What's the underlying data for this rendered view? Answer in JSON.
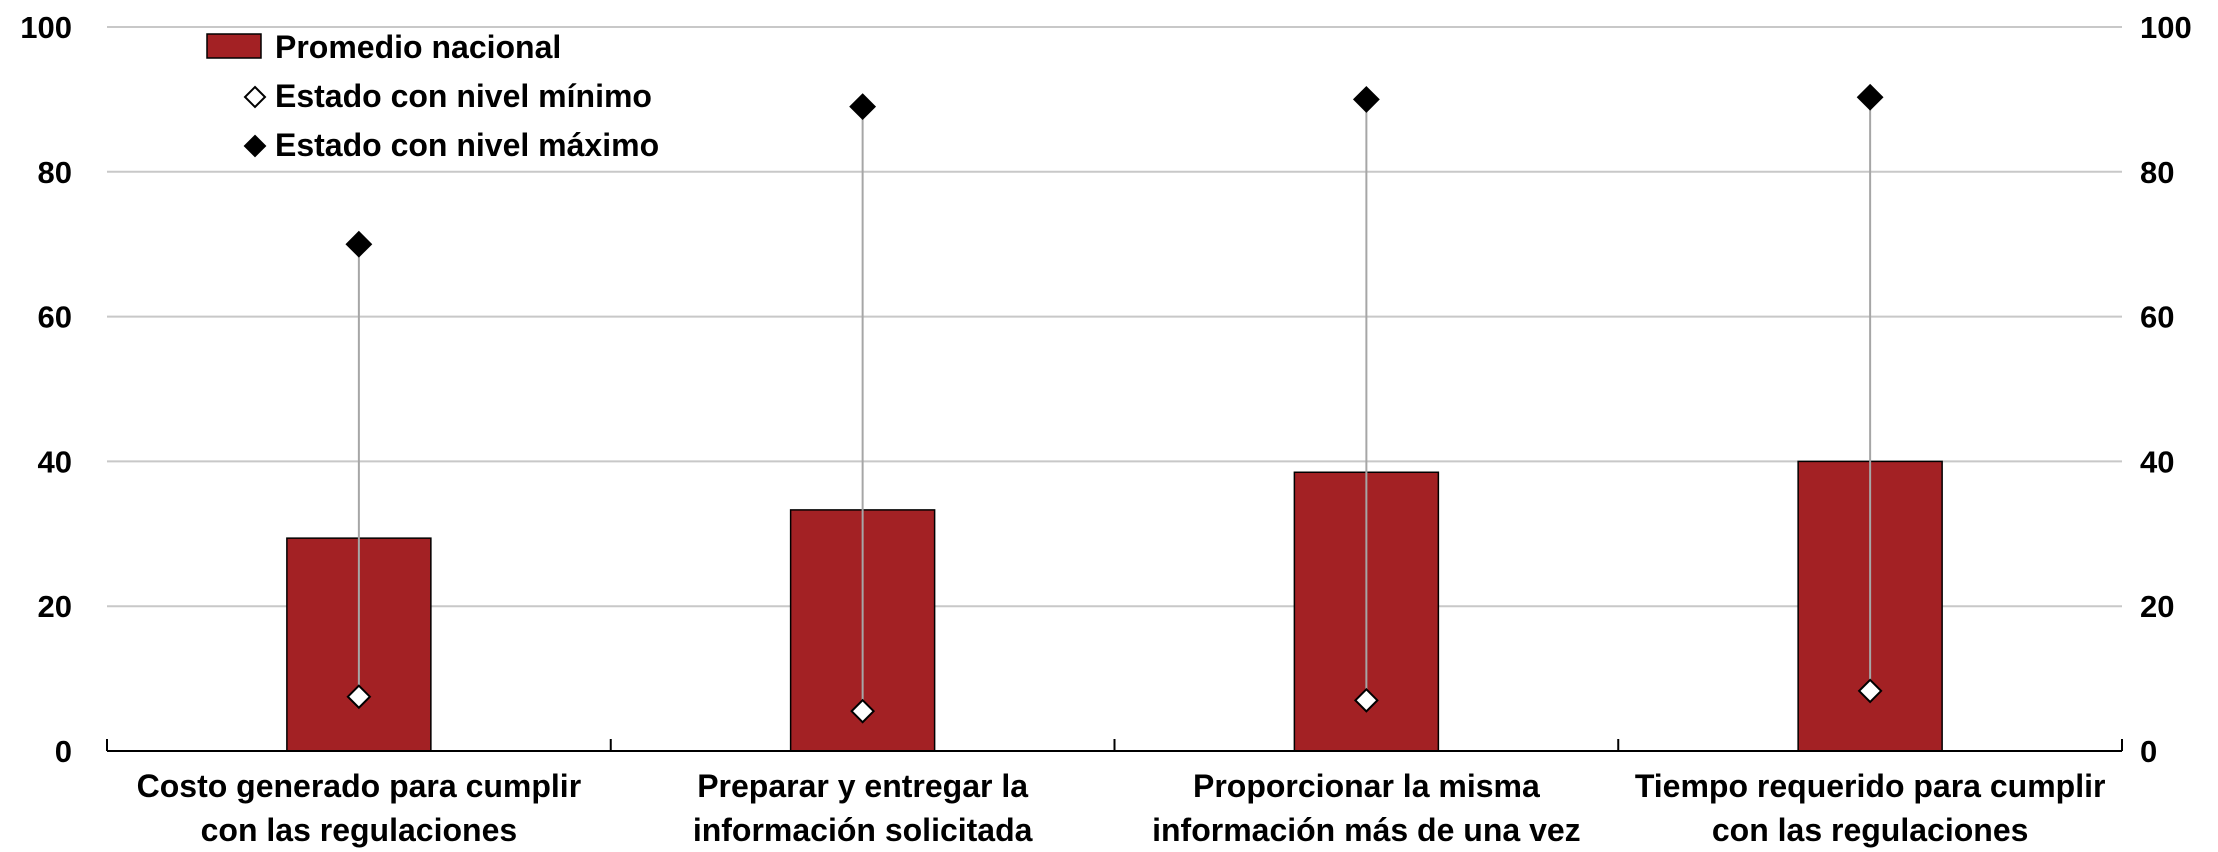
{
  "chart_data": {
    "type": "bar",
    "categories": [
      [
        "Costo generado para cumplir",
        "con las regulaciones"
      ],
      [
        "Preparar y entregar la",
        "información solicitada"
      ],
      [
        "Proporcionar la misma",
        "información más de una vez"
      ],
      [
        "Tiempo requerido para cumplir",
        "con las regulaciones"
      ]
    ],
    "series": [
      {
        "name": "Promedio nacional",
        "kind": "bar",
        "values": [
          29.4,
          33.3,
          38.5,
          40.0
        ]
      },
      {
        "name": "Estado con nivel mínimo",
        "kind": "marker",
        "marker": "diamond-open",
        "values": [
          7.5,
          5.5,
          7.0,
          8.3
        ]
      },
      {
        "name": "Estado con nivel máximo",
        "kind": "marker",
        "marker": "diamond-filled",
        "values": [
          70.0,
          89.0,
          90.0,
          90.3
        ]
      }
    ],
    "ylim": [
      0,
      100
    ],
    "yticks": [
      0,
      20,
      40,
      60,
      80,
      100
    ],
    "dual_y_axis": true,
    "grid": true,
    "legend_position": "top-left",
    "colors": {
      "bar": "#a32124",
      "range_line": "#a6a6a6",
      "grid": "#c8c8c8",
      "marker": "#000000"
    },
    "title": "",
    "xlabel": "",
    "ylabel": ""
  }
}
